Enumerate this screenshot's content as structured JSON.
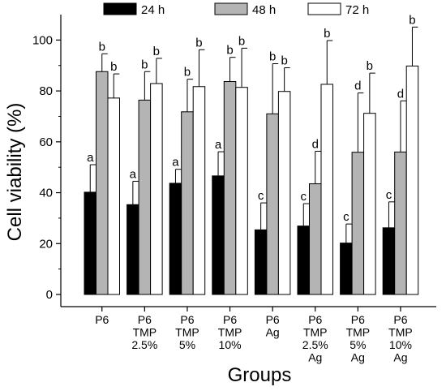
{
  "chart_data": {
    "type": "bar",
    "title": "",
    "xlabel": "Groups",
    "ylabel": "Cell viability (%)",
    "ylim": [
      0,
      110
    ],
    "yticks": [
      0,
      20,
      40,
      60,
      80,
      100
    ],
    "grid": false,
    "legend_position": "top",
    "categories": [
      [
        "P6"
      ],
      [
        "P6",
        "TMP",
        "2.5%"
      ],
      [
        "P6",
        "TMP",
        "5%"
      ],
      [
        "P6",
        "TMP",
        "10%"
      ],
      [
        "P6",
        "Ag"
      ],
      [
        "P6",
        "TMP",
        "2.5%",
        "Ag"
      ],
      [
        "P6",
        "TMP",
        "5%",
        "Ag"
      ],
      [
        "P6",
        "TMP",
        "10%",
        "Ag"
      ]
    ],
    "series": [
      {
        "name": "24 h",
        "color": "#000000",
        "values": [
          40.2,
          35.3,
          43.7,
          46.6,
          25.4,
          26.9,
          20.2,
          26.2
        ],
        "errors": [
          10.8,
          9.2,
          5.5,
          9.5,
          10.6,
          8.8,
          7.5,
          10.2
        ],
        "labels": [
          "a",
          "a",
          "a",
          "a",
          "c",
          "c",
          "c",
          "c"
        ]
      },
      {
        "name": "48 h",
        "color": "#b4b4b4",
        "values": [
          87.6,
          76.4,
          71.8,
          83.7,
          71.0,
          43.5,
          55.9,
          56.0
        ],
        "errors": [
          7.0,
          11.2,
          12.8,
          9.5,
          19.7,
          12.8,
          23.3,
          20.1
        ],
        "labels": [
          "b",
          "b",
          "b",
          "b",
          "b",
          "d",
          "d",
          "d"
        ]
      },
      {
        "name": "72 h",
        "color": "#ffffff",
        "values": [
          77.2,
          82.9,
          81.7,
          81.4,
          79.8,
          82.6,
          71.2,
          89.8
        ],
        "errors": [
          9.5,
          9.9,
          14.5,
          15.4,
          9.3,
          17.2,
          15.8,
          15.3
        ],
        "labels": [
          "b",
          "b",
          "b",
          "b",
          "b",
          "b",
          "b",
          "b"
        ]
      }
    ]
  }
}
